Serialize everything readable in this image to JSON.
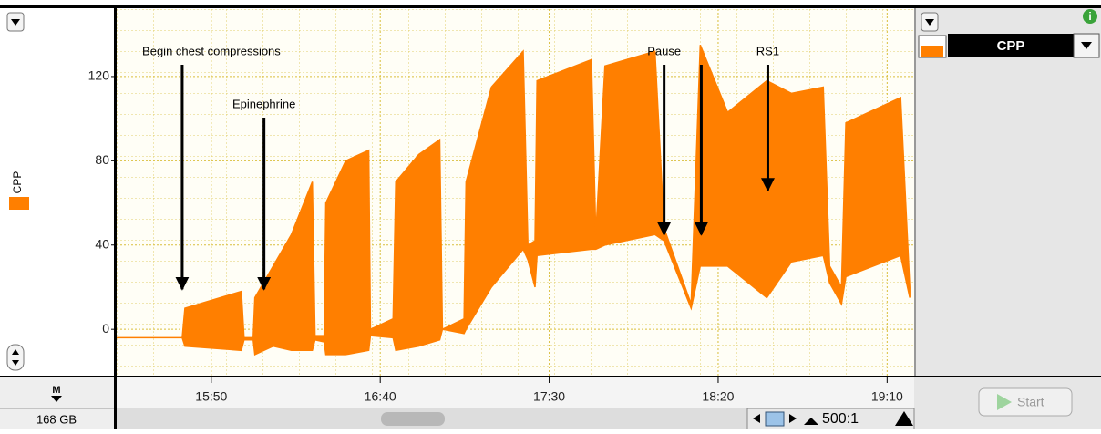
{
  "chart_data": {
    "type": "area-band",
    "x": [
      922,
      941.4,
      942.2,
      958.9,
      959.7,
      962.4,
      962.9,
      968.3,
      973.7,
      979.9,
      980.7,
      983.4,
      983.9,
      989.8,
      996.6,
      997.1,
      1003.8,
      1004.6,
      1011.4,
      1017.6,
      1018.4,
      1024.8,
      1025.4,
      1032.9,
      1042.3,
      1043.7,
      1045.8,
      1046.4,
      1062.5,
      1063.8,
      1066.5,
      1081.3,
      1084,
      1092,
      1094.7,
      1102.8,
      1114.4,
      1121.7,
      1131.1,
      1133,
      1136.5,
      1137.8,
      1154,
      1156.7
    ],
    "series": [
      {
        "name": "CPP",
        "color": "#ff7f00",
        "upper": [
          -4,
          -4,
          10,
          18,
          -4,
          -4,
          15,
          30,
          45,
          70,
          -3,
          -3,
          60,
          80,
          85,
          0,
          5,
          70,
          83,
          90,
          0,
          5,
          70,
          115,
          132,
          40,
          42,
          118,
          128,
          45,
          125,
          132,
          48,
          12,
          135,
          103,
          118,
          112,
          115,
          30,
          20,
          98,
          110,
          20
        ],
        "lower": [
          -4,
          -4,
          -8,
          -10,
          -5,
          -5,
          -12,
          -8,
          -10,
          -10,
          -5,
          -6,
          -12,
          -12,
          -10,
          -3,
          -4,
          -10,
          -8,
          -5,
          0,
          -2,
          0,
          20,
          38,
          33,
          20,
          35,
          38,
          38,
          40,
          45,
          42,
          10,
          30,
          30,
          15,
          32,
          35,
          22,
          12,
          25,
          35,
          15
        ]
      }
    ],
    "xlim": [
      922,
      1158
    ],
    "xticks": [
      {
        "value": 950,
        "label": "15:50"
      },
      {
        "value": 1000,
        "label": "16:40"
      },
      {
        "value": 1050,
        "label": "17:30"
      },
      {
        "value": 1100,
        "label": "18:20"
      },
      {
        "value": 1150,
        "label": "19:10"
      }
    ],
    "ylim": [
      -22,
      152
    ],
    "yticks": [
      0,
      40,
      80,
      120
    ],
    "grid": true,
    "annotations": [
      {
        "text": "Begin chest compressions",
        "x": 941.4,
        "y": 19
      },
      {
        "text": "Epinephrine",
        "x": 965.6,
        "y": 19
      },
      {
        "text": "Pause",
        "x": 1084,
        "y": 45
      },
      {
        "x": 1095,
        "y": 45
      },
      {
        "text": "RS1",
        "x": 1114.7,
        "y": 66
      }
    ]
  },
  "ui": {
    "marker": "M",
    "disk": "168 GB",
    "channel_selector": "CPP",
    "start_button": "Start",
    "zoom_ratio": "500:1"
  }
}
